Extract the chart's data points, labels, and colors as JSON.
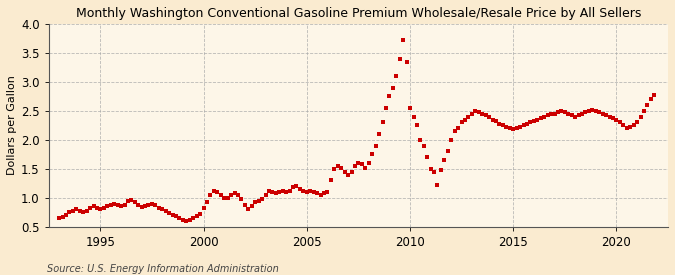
{
  "title": "Monthly Washington Conventional Gasoline Premium Wholesale/Resale Price by All Sellers",
  "ylabel": "Dollars per Gallon",
  "source": "Source: U.S. Energy Information Administration",
  "background_color": "#faebd0",
  "plot_bg_color": "#fdf6e8",
  "dot_color": "#cc0000",
  "xlim": [
    1992.5,
    2022.5
  ],
  "ylim": [
    0.5,
    4.0
  ],
  "xticks": [
    1995,
    2000,
    2005,
    2010,
    2015,
    2020
  ],
  "yticks": [
    0.5,
    1.0,
    1.5,
    2.0,
    2.5,
    3.0,
    3.5,
    4.0
  ],
  "data": [
    [
      1993.0,
      0.65
    ],
    [
      1993.17,
      0.67
    ],
    [
      1993.33,
      0.7
    ],
    [
      1993.5,
      0.75
    ],
    [
      1993.67,
      0.78
    ],
    [
      1993.83,
      0.8
    ],
    [
      1994.0,
      0.78
    ],
    [
      1994.17,
      0.75
    ],
    [
      1994.33,
      0.78
    ],
    [
      1994.5,
      0.82
    ],
    [
      1994.67,
      0.85
    ],
    [
      1994.83,
      0.83
    ],
    [
      1995.0,
      0.8
    ],
    [
      1995.17,
      0.82
    ],
    [
      1995.33,
      0.85
    ],
    [
      1995.5,
      0.88
    ],
    [
      1995.67,
      0.9
    ],
    [
      1995.83,
      0.88
    ],
    [
      1996.0,
      0.85
    ],
    [
      1996.17,
      0.88
    ],
    [
      1996.33,
      0.95
    ],
    [
      1996.5,
      0.97
    ],
    [
      1996.67,
      0.93
    ],
    [
      1996.83,
      0.87
    ],
    [
      1997.0,
      0.84
    ],
    [
      1997.17,
      0.85
    ],
    [
      1997.33,
      0.88
    ],
    [
      1997.5,
      0.9
    ],
    [
      1997.67,
      0.87
    ],
    [
      1997.83,
      0.83
    ],
    [
      1998.0,
      0.8
    ],
    [
      1998.17,
      0.77
    ],
    [
      1998.33,
      0.73
    ],
    [
      1998.5,
      0.7
    ],
    [
      1998.67,
      0.68
    ],
    [
      1998.83,
      0.65
    ],
    [
      1999.0,
      0.62
    ],
    [
      1999.17,
      0.6
    ],
    [
      1999.33,
      0.62
    ],
    [
      1999.5,
      0.65
    ],
    [
      1999.67,
      0.68
    ],
    [
      1999.83,
      0.72
    ],
    [
      2000.0,
      0.82
    ],
    [
      2000.17,
      0.92
    ],
    [
      2000.33,
      1.05
    ],
    [
      2000.5,
      1.12
    ],
    [
      2000.67,
      1.1
    ],
    [
      2000.83,
      1.05
    ],
    [
      2001.0,
      1.0
    ],
    [
      2001.17,
      1.0
    ],
    [
      2001.33,
      1.05
    ],
    [
      2001.5,
      1.08
    ],
    [
      2001.67,
      1.05
    ],
    [
      2001.83,
      0.98
    ],
    [
      2002.0,
      0.88
    ],
    [
      2002.17,
      0.8
    ],
    [
      2002.33,
      0.85
    ],
    [
      2002.5,
      0.92
    ],
    [
      2002.67,
      0.95
    ],
    [
      2002.83,
      0.98
    ],
    [
      2003.0,
      1.05
    ],
    [
      2003.17,
      1.12
    ],
    [
      2003.33,
      1.1
    ],
    [
      2003.5,
      1.08
    ],
    [
      2003.67,
      1.1
    ],
    [
      2003.83,
      1.12
    ],
    [
      2004.0,
      1.1
    ],
    [
      2004.17,
      1.12
    ],
    [
      2004.33,
      1.18
    ],
    [
      2004.5,
      1.2
    ],
    [
      2004.67,
      1.15
    ],
    [
      2004.83,
      1.12
    ],
    [
      2005.0,
      1.1
    ],
    [
      2005.17,
      1.12
    ],
    [
      2005.33,
      1.1
    ],
    [
      2005.5,
      1.08
    ],
    [
      2005.67,
      1.05
    ],
    [
      2005.83,
      1.08
    ],
    [
      2006.0,
      1.1
    ],
    [
      2006.17,
      1.3
    ],
    [
      2006.33,
      1.5
    ],
    [
      2006.5,
      1.55
    ],
    [
      2006.67,
      1.52
    ],
    [
      2006.83,
      1.45
    ],
    [
      2007.0,
      1.4
    ],
    [
      2007.17,
      1.45
    ],
    [
      2007.33,
      1.55
    ],
    [
      2007.5,
      1.6
    ],
    [
      2007.67,
      1.58
    ],
    [
      2007.83,
      1.52
    ],
    [
      2008.0,
      1.6
    ],
    [
      2008.17,
      1.75
    ],
    [
      2008.33,
      1.9
    ],
    [
      2008.5,
      2.1
    ],
    [
      2008.67,
      2.3
    ],
    [
      2008.83,
      2.55
    ],
    [
      2009.0,
      2.75
    ],
    [
      2009.17,
      2.9
    ],
    [
      2009.33,
      3.1
    ],
    [
      2009.5,
      3.4
    ],
    [
      2009.67,
      3.72
    ],
    [
      2009.83,
      3.35
    ],
    [
      2010.0,
      2.55
    ],
    [
      2010.17,
      2.4
    ],
    [
      2010.33,
      2.25
    ],
    [
      2010.5,
      2.0
    ],
    [
      2010.67,
      1.9
    ],
    [
      2010.83,
      1.7
    ],
    [
      2011.0,
      1.5
    ],
    [
      2011.17,
      1.45
    ],
    [
      2011.33,
      1.22
    ],
    [
      2011.5,
      1.48
    ],
    [
      2011.67,
      1.65
    ],
    [
      2011.83,
      1.8
    ],
    [
      2012.0,
      2.0
    ],
    [
      2012.17,
      2.15
    ],
    [
      2012.33,
      2.2
    ],
    [
      2012.5,
      2.3
    ],
    [
      2012.67,
      2.35
    ],
    [
      2012.83,
      2.4
    ],
    [
      2013.0,
      2.45
    ],
    [
      2013.17,
      2.5
    ],
    [
      2013.33,
      2.48
    ],
    [
      2013.5,
      2.45
    ],
    [
      2013.67,
      2.42
    ],
    [
      2013.83,
      2.4
    ],
    [
      2014.0,
      2.35
    ],
    [
      2014.17,
      2.32
    ],
    [
      2014.33,
      2.28
    ],
    [
      2014.5,
      2.25
    ],
    [
      2014.67,
      2.22
    ],
    [
      2014.83,
      2.2
    ],
    [
      2015.0,
      2.18
    ],
    [
      2015.17,
      2.2
    ],
    [
      2015.33,
      2.22
    ],
    [
      2015.5,
      2.25
    ],
    [
      2015.67,
      2.28
    ],
    [
      2015.83,
      2.3
    ],
    [
      2016.0,
      2.32
    ],
    [
      2016.17,
      2.35
    ],
    [
      2016.33,
      2.38
    ],
    [
      2016.5,
      2.4
    ],
    [
      2016.67,
      2.42
    ],
    [
      2016.83,
      2.45
    ],
    [
      2017.0,
      2.45
    ],
    [
      2017.17,
      2.48
    ],
    [
      2017.33,
      2.5
    ],
    [
      2017.5,
      2.48
    ],
    [
      2017.67,
      2.45
    ],
    [
      2017.83,
      2.42
    ],
    [
      2018.0,
      2.4
    ],
    [
      2018.17,
      2.42
    ],
    [
      2018.33,
      2.45
    ],
    [
      2018.5,
      2.48
    ],
    [
      2018.67,
      2.5
    ],
    [
      2018.83,
      2.52
    ],
    [
      2019.0,
      2.5
    ],
    [
      2019.17,
      2.48
    ],
    [
      2019.33,
      2.45
    ],
    [
      2019.5,
      2.42
    ],
    [
      2019.67,
      2.4
    ],
    [
      2019.83,
      2.38
    ],
    [
      2020.0,
      2.35
    ],
    [
      2020.17,
      2.3
    ],
    [
      2020.33,
      2.25
    ],
    [
      2020.5,
      2.2
    ],
    [
      2020.67,
      2.22
    ],
    [
      2020.83,
      2.25
    ],
    [
      2021.0,
      2.3
    ],
    [
      2021.17,
      2.4
    ],
    [
      2021.33,
      2.5
    ],
    [
      2021.5,
      2.6
    ],
    [
      2021.67,
      2.7
    ],
    [
      2021.83,
      2.78
    ]
  ]
}
